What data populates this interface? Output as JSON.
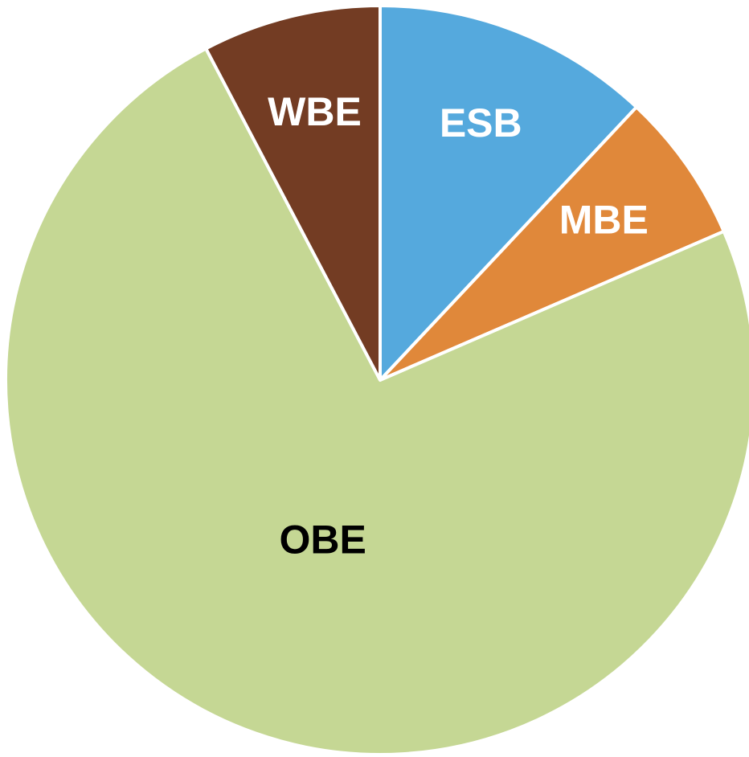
{
  "chart_data": {
    "type": "pie",
    "categories": [
      "ESB",
      "MBE",
      "OBE",
      "WBE"
    ],
    "values": [
      12,
      6.5,
      73.8,
      7.7
    ],
    "colors": [
      "#55a9dd",
      "#e0883a",
      "#c5d794",
      "#733c23"
    ],
    "label_colors": [
      "#ffffff",
      "#ffffff",
      "#000000",
      "#ffffff"
    ]
  }
}
